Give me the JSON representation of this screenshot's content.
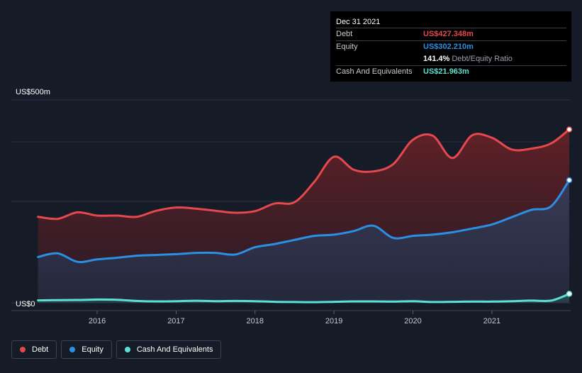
{
  "tooltip": {
    "date": "Dec 31 2021",
    "debt_label": "Debt",
    "debt_value": "US$427.348m",
    "equity_label": "Equity",
    "equity_value": "US$302.210m",
    "ratio_value": "141.4%",
    "ratio_label": "Debt/Equity Ratio",
    "cash_label": "Cash And Equivalents",
    "cash_value": "US$21.963m"
  },
  "legend": {
    "debt": "Debt",
    "equity": "Equity",
    "cash": "Cash And Equivalents"
  },
  "colors": {
    "debt": "#e5484d",
    "equity": "#2b8fe3",
    "cash": "#5ce0d0",
    "background": "#151b27"
  },
  "chart_data": {
    "type": "area",
    "ylabel_top": "US$500m",
    "ylabel_bottom": "US$0",
    "ylim": [
      0,
      500
    ],
    "xlim": [
      2015.2,
      2021.98
    ],
    "x_ticks": [
      {
        "label": "2016",
        "x": 2016
      },
      {
        "label": "2017",
        "x": 2017
      },
      {
        "label": "2018",
        "x": 2018
      },
      {
        "label": "2019",
        "x": 2019
      },
      {
        "label": "2020",
        "x": 2020
      },
      {
        "label": "2021",
        "x": 2021
      }
    ],
    "gridlines": [
      0,
      250,
      500
    ],
    "series": [
      {
        "name": "Debt",
        "key": "debt",
        "points": [
          [
            2015.25,
            212
          ],
          [
            2015.5,
            207
          ],
          [
            2015.75,
            223
          ],
          [
            2016.0,
            215
          ],
          [
            2016.25,
            215
          ],
          [
            2016.5,
            212
          ],
          [
            2016.75,
            227
          ],
          [
            2017.0,
            235
          ],
          [
            2017.25,
            232
          ],
          [
            2017.5,
            227
          ],
          [
            2017.75,
            222
          ],
          [
            2018.0,
            226
          ],
          [
            2018.25,
            245
          ],
          [
            2018.5,
            248
          ],
          [
            2018.75,
            298
          ],
          [
            2019.0,
            360
          ],
          [
            2019.25,
            328
          ],
          [
            2019.5,
            324
          ],
          [
            2019.75,
            342
          ],
          [
            2020.0,
            402
          ],
          [
            2020.25,
            412
          ],
          [
            2020.5,
            357
          ],
          [
            2020.75,
            413
          ],
          [
            2021.0,
            407
          ],
          [
            2021.25,
            378
          ],
          [
            2021.5,
            380
          ],
          [
            2021.75,
            393
          ],
          [
            2021.98,
            427.348
          ]
        ]
      },
      {
        "name": "Equity",
        "key": "equity",
        "points": [
          [
            2015.25,
            113
          ],
          [
            2015.5,
            122
          ],
          [
            2015.75,
            101
          ],
          [
            2016.0,
            107
          ],
          [
            2016.25,
            111
          ],
          [
            2016.5,
            116
          ],
          [
            2016.75,
            118
          ],
          [
            2017.0,
            120
          ],
          [
            2017.25,
            123
          ],
          [
            2017.5,
            123
          ],
          [
            2017.75,
            119
          ],
          [
            2018.0,
            137
          ],
          [
            2018.25,
            145
          ],
          [
            2018.5,
            155
          ],
          [
            2018.75,
            165
          ],
          [
            2019.0,
            168
          ],
          [
            2019.25,
            177
          ],
          [
            2019.5,
            190
          ],
          [
            2019.75,
            160
          ],
          [
            2020.0,
            165
          ],
          [
            2020.25,
            168
          ],
          [
            2020.5,
            174
          ],
          [
            2020.75,
            183
          ],
          [
            2021.0,
            193
          ],
          [
            2021.25,
            211
          ],
          [
            2021.5,
            229
          ],
          [
            2021.75,
            238
          ],
          [
            2021.98,
            302.21
          ]
        ]
      },
      {
        "name": "Cash And Equivalents",
        "key": "cash",
        "points": [
          [
            2015.25,
            6
          ],
          [
            2015.5,
            6.5
          ],
          [
            2015.75,
            7
          ],
          [
            2016.0,
            8
          ],
          [
            2016.25,
            7.5
          ],
          [
            2016.5,
            4.5
          ],
          [
            2016.75,
            3.5
          ],
          [
            2017.0,
            4
          ],
          [
            2017.25,
            5
          ],
          [
            2017.5,
            4
          ],
          [
            2017.75,
            4.5
          ],
          [
            2018.0,
            4
          ],
          [
            2018.25,
            2.5
          ],
          [
            2018.5,
            2
          ],
          [
            2018.75,
            1.5
          ],
          [
            2019.0,
            2.5
          ],
          [
            2019.25,
            3.5
          ],
          [
            2019.5,
            3.5
          ],
          [
            2019.75,
            3
          ],
          [
            2020.0,
            4
          ],
          [
            2020.25,
            2
          ],
          [
            2020.5,
            2.5
          ],
          [
            2020.75,
            3
          ],
          [
            2021.0,
            3
          ],
          [
            2021.25,
            4
          ],
          [
            2021.5,
            5.5
          ],
          [
            2021.75,
            5.5
          ],
          [
            2021.98,
            21.963
          ]
        ]
      }
    ]
  }
}
